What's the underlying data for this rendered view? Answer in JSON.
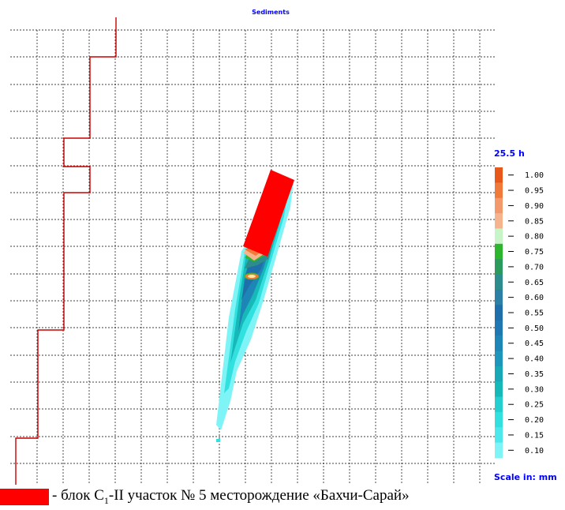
{
  "title": "Sediments",
  "time_label": "25.5 h",
  "scale_label": "Scale in: mm",
  "colors": {
    "grid": "#000000",
    "boundary": "#cc0000",
    "block": "#ff0000",
    "labels": "#0000ff"
  },
  "colorbar": {
    "levels": [
      "1.00",
      "0.95",
      "0.90",
      "0.85",
      "0.80",
      "0.75",
      "0.70",
      "0.65",
      "0.60",
      "0.55",
      "0.50",
      "0.45",
      "0.40",
      "0.35",
      "0.30",
      "0.25",
      "0.20",
      "0.15",
      "0.10"
    ],
    "colors": [
      "#e8581a",
      "#f07a3a",
      "#f39a6c",
      "#f6b48e",
      "#c8f5c8",
      "#2db52d",
      "#2c9a5c",
      "#2d8c8c",
      "#2c7fa5",
      "#1f6faa",
      "#1f78b2",
      "#1e86b6",
      "#1e95bb",
      "#18a8b8",
      "#16b8b8",
      "#25cfcf",
      "#33e0e0",
      "#4de8ec",
      "#7ff4f7"
    ]
  },
  "legend": {
    "text_prefix": "- блок С",
    "text_sub": "1",
    "text_suffix": "-II участок № 5 месторождение «Бахчи-Сарай»"
  }
}
